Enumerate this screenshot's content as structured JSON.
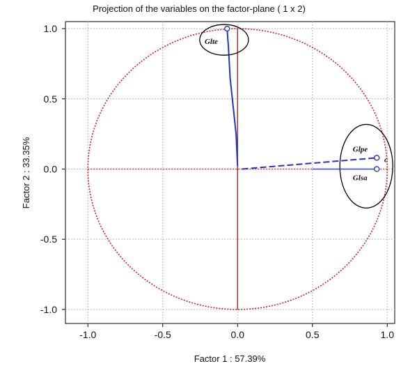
{
  "chart_data": {
    "type": "scatter",
    "title": "Projection of the variables on the factor-plane (  1 x  2)",
    "xlabel": "Factor 1 : 57.39%",
    "ylabel": "Factor 2 : 33.35%",
    "xlim": [
      -1.15,
      1.05
    ],
    "ylim": [
      -1.1,
      1.05
    ],
    "xticks": [
      "-1.0",
      "-0.5",
      "0.0",
      "0.5",
      "1.0"
    ],
    "yticks": [
      "1.0",
      "0.5",
      "0.0",
      "-0.5",
      "-1.0"
    ],
    "grid": true,
    "unit_circle": true,
    "points": [
      {
        "label": "Glte",
        "x": -0.07,
        "y": 1.0
      },
      {
        "label": "Glpe",
        "x": 0.93,
        "y": 0.08
      },
      {
        "label": "Glsa",
        "x": 0.93,
        "y": 0.0
      }
    ],
    "extra_mark": "c",
    "colors": {
      "circle": "#cc2222",
      "axes": "#cc2222",
      "vectors": "#2233cc",
      "grid": "#b8b8b8"
    }
  }
}
